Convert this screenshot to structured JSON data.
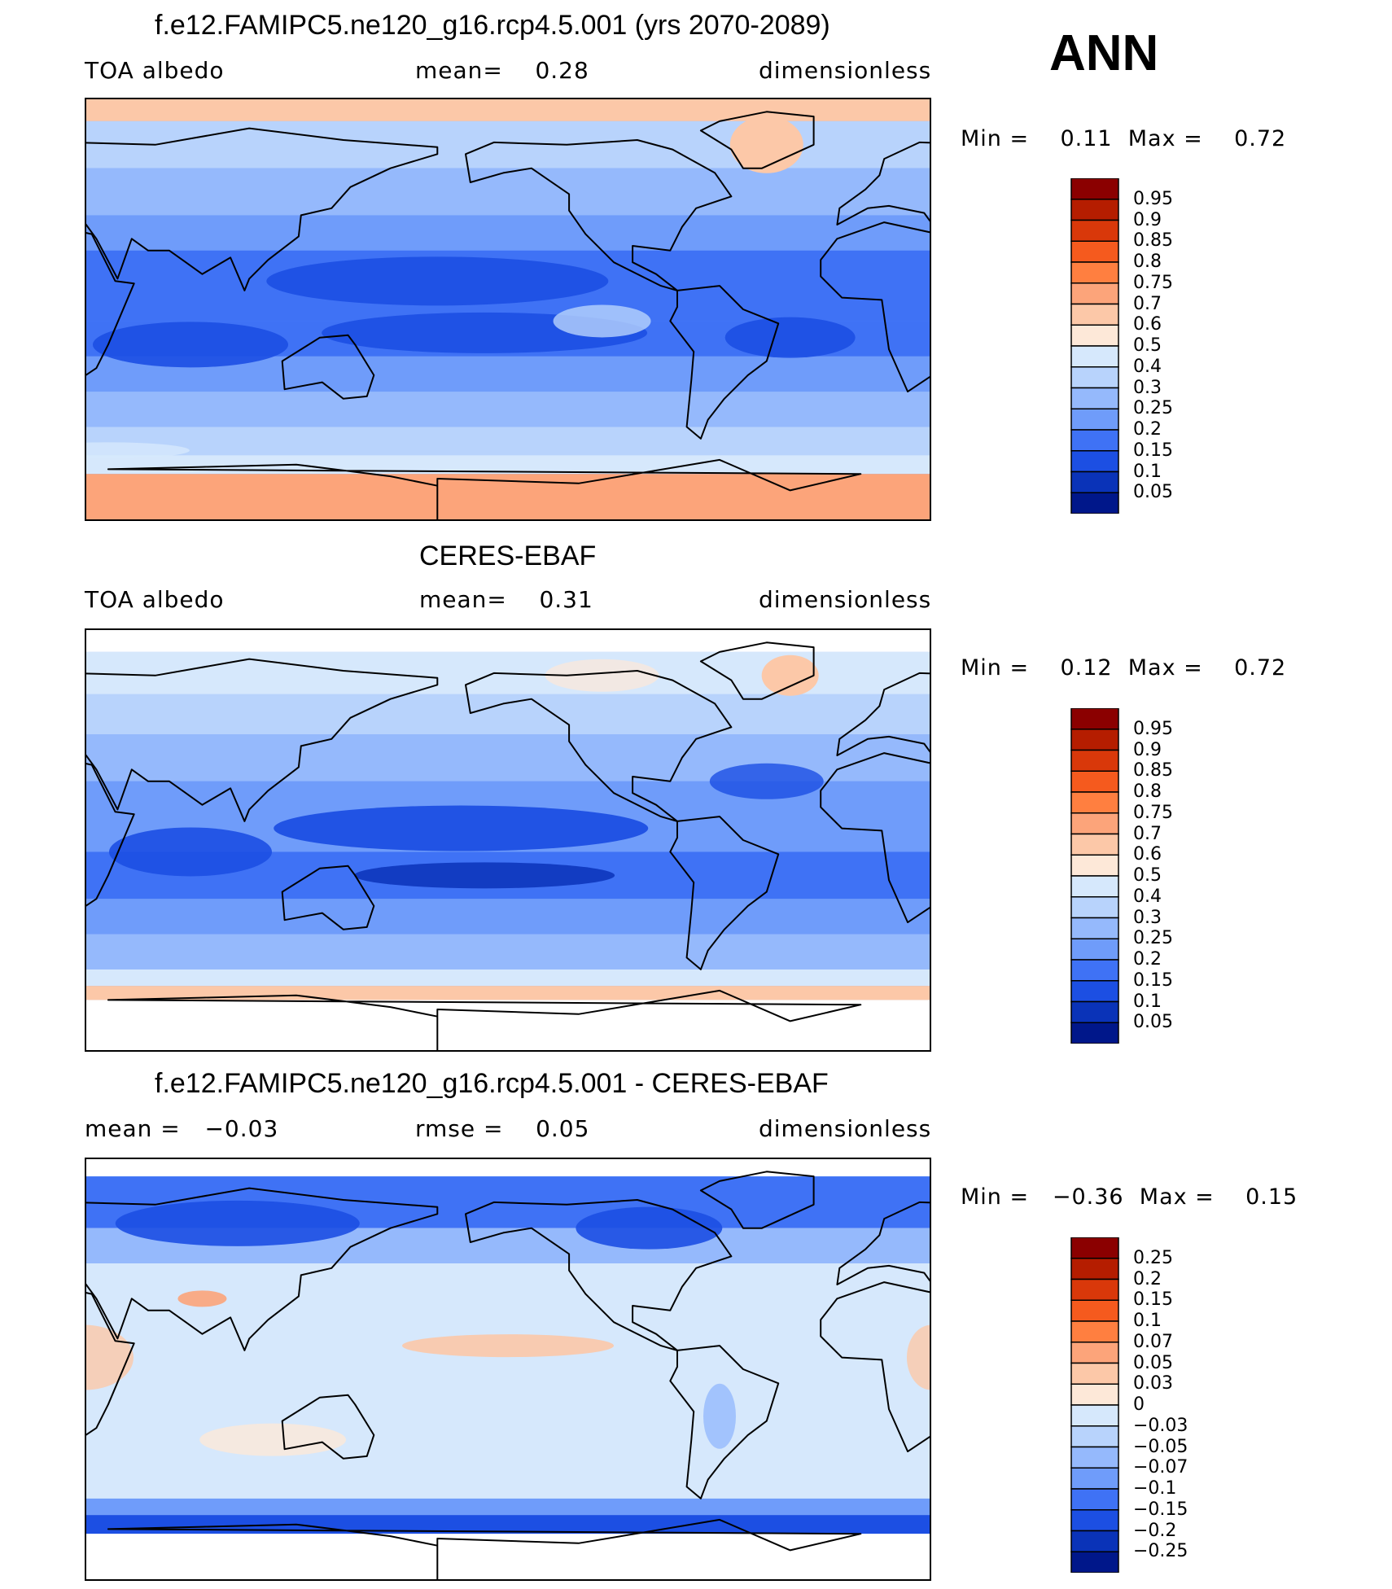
{
  "season": "ANN",
  "panels": [
    {
      "title": "f.e12.FAMIPC5.ne120_g16.rcp4.5.001 (yrs 2070-2089)",
      "left_label": "TOA albedo",
      "center_label": "mean=    0.28",
      "right_label": "dimensionless",
      "minmax": "Min =    0.11  Max =    0.72",
      "field": "model",
      "colorbar_labels": [
        "0.95",
        "0.9",
        "0.85",
        "0.8",
        "0.75",
        "0.7",
        "0.6",
        "0.5",
        "0.4",
        "0.3",
        "0.25",
        "0.2",
        "0.15",
        "0.1",
        "0.05"
      ]
    },
    {
      "title": "CERES-EBAF",
      "left_label": "TOA albedo",
      "center_label": "mean=    0.31",
      "right_label": "dimensionless",
      "minmax": "Min =    0.12  Max =    0.72",
      "field": "obs",
      "colorbar_labels": [
        "0.95",
        "0.9",
        "0.85",
        "0.8",
        "0.75",
        "0.7",
        "0.6",
        "0.5",
        "0.4",
        "0.3",
        "0.25",
        "0.2",
        "0.15",
        "0.1",
        "0.05"
      ]
    },
    {
      "title": "f.e12.FAMIPC5.ne120_g16.rcp4.5.001 - CERES-EBAF",
      "left_label": "mean =   −0.03",
      "center_label": "rmse =    0.05",
      "right_label": "dimensionless",
      "minmax": "Min =   −0.36  Max =    0.15",
      "field": "diff",
      "colorbar_labels": [
        "0.25",
        "0.2",
        "0.15",
        "0.1",
        "0.07",
        "0.05",
        "0.03",
        "0",
        "−0.03",
        "−0.05",
        "−0.07",
        "−0.1",
        "−0.15",
        "−0.2",
        "−0.25"
      ]
    }
  ],
  "colors": {
    "levels16": [
      "#8b0000",
      "#b51d00",
      "#d9380a",
      "#f55a1e",
      "#ff7f40",
      "#fca47a",
      "#fcc8a8",
      "#fde8d8",
      "#d6e8fc",
      "#b8d3fc",
      "#95b9fc",
      "#6f9cfa",
      "#3f72f5",
      "#1c4fe3",
      "#0a33b8",
      "#00178a"
    ],
    "ocean_model": "#3f72f5",
    "ocean_obs": "#3f72f5",
    "diff_base": "#d6e8fc"
  }
}
